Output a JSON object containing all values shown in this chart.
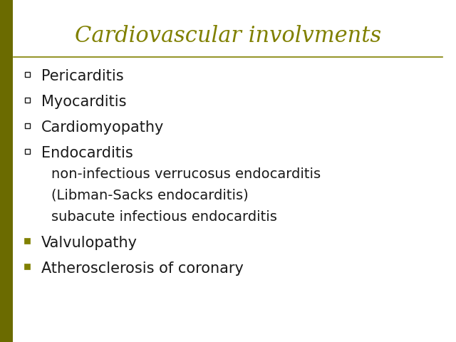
{
  "title": "Cardiovascular involvments",
  "title_color": "#808000",
  "title_fontsize": 22,
  "background_color": "#ffffff",
  "line_color": "#808000",
  "left_bar_color": "#6b6b00",
  "bullet1_items": [
    "Pericarditis",
    "Myocarditis",
    "Cardiomyopathy",
    "Endocarditis"
  ],
  "sub_items": [
    "non-infectious verrucosus endocarditis",
    "(Libman-Sacks endocarditis)",
    "subacute infectious endocarditis"
  ],
  "bullet2_items": [
    "Valvulopathy",
    "Atherosclerosis of coronary"
  ],
  "text_color": "#1a1a1a",
  "body_fontsize": 15
}
